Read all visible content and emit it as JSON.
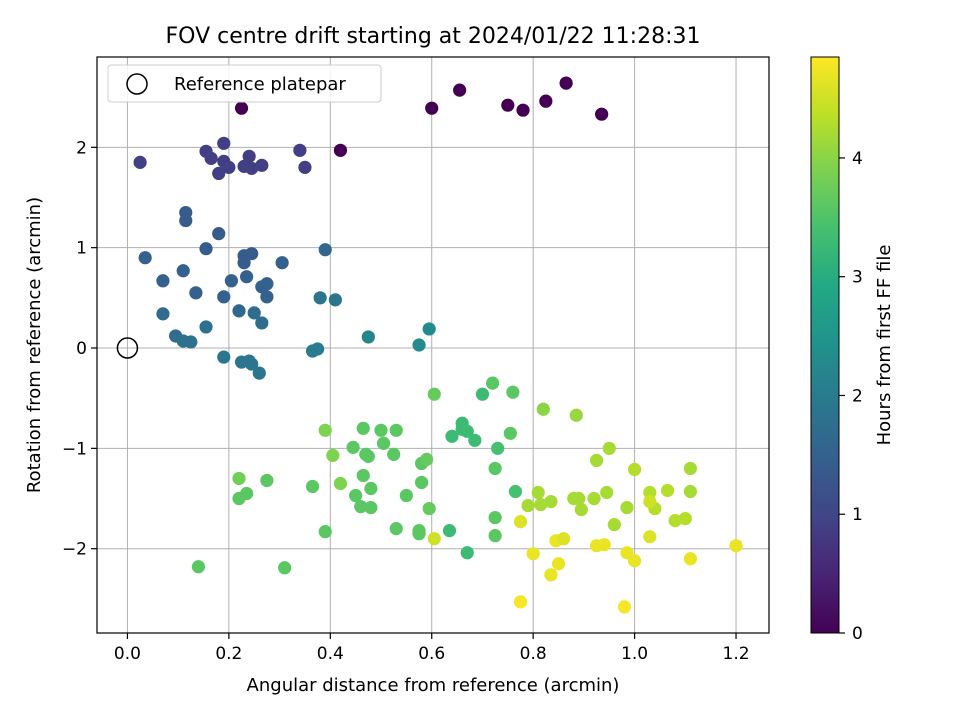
{
  "chart_data": {
    "type": "scatter",
    "title": "FOV centre drift starting at 2024/01/22 11:28:31",
    "xlabel": "Angular distance from reference (arcmin)",
    "ylabel": "Rotation from reference (arcmin)",
    "xlim": [
      -0.06,
      1.265
    ],
    "ylim": [
      -2.84,
      2.9
    ],
    "x_ticks": [
      0.0,
      0.2,
      0.4,
      0.6,
      0.8,
      1.0,
      1.2
    ],
    "x_tick_labels": [
      "0.0",
      "0.2",
      "0.4",
      "0.6",
      "0.8",
      "1.0",
      "1.2"
    ],
    "y_ticks": [
      -2,
      -1,
      0,
      1,
      2
    ],
    "y_tick_labels": [
      "−2",
      "−1",
      "0",
      "1",
      "2"
    ],
    "grid": true,
    "legend": {
      "position": "top-left",
      "entries": [
        {
          "label": "Reference platepar",
          "marker": "open-circle"
        }
      ]
    },
    "reference_point": {
      "x": 0.0,
      "y": 0.0
    },
    "colorbar": {
      "label": "Hours from first FF file",
      "colormap": "viridis",
      "range": [
        0,
        4.85
      ],
      "ticks": [
        0,
        1,
        2,
        3,
        4
      ],
      "tick_labels": [
        "0",
        "1",
        "2",
        "3",
        "4"
      ]
    },
    "points": [
      [
        0.225,
        2.39,
        0.0
      ],
      [
        0.42,
        1.97,
        0.0
      ],
      [
        0.6,
        2.39,
        0.0
      ],
      [
        0.655,
        2.57,
        0.0
      ],
      [
        0.75,
        2.42,
        0.0
      ],
      [
        0.78,
        2.37,
        0.0
      ],
      [
        0.825,
        2.46,
        0.0
      ],
      [
        0.865,
        2.64,
        0.0
      ],
      [
        0.935,
        2.33,
        0.0
      ],
      [
        0.025,
        1.85,
        0.9
      ],
      [
        0.155,
        1.96,
        0.9
      ],
      [
        0.165,
        1.89,
        0.9
      ],
      [
        0.19,
        2.04,
        0.9
      ],
      [
        0.19,
        1.86,
        0.9
      ],
      [
        0.18,
        1.74,
        0.9
      ],
      [
        0.2,
        1.8,
        0.9
      ],
      [
        0.23,
        1.81,
        0.9
      ],
      [
        0.24,
        1.91,
        0.9
      ],
      [
        0.245,
        1.79,
        0.9
      ],
      [
        0.265,
        1.82,
        0.9
      ],
      [
        0.34,
        1.97,
        0.9
      ],
      [
        0.35,
        1.8,
        0.9
      ],
      [
        0.115,
        1.35,
        1.4
      ],
      [
        0.115,
        1.27,
        1.4
      ],
      [
        0.18,
        1.14,
        1.4
      ],
      [
        0.155,
        0.99,
        1.4
      ],
      [
        0.23,
        0.92,
        1.4
      ],
      [
        0.245,
        0.94,
        1.4
      ],
      [
        0.23,
        0.85,
        1.4
      ],
      [
        0.035,
        0.9,
        1.5
      ],
      [
        0.11,
        0.77,
        1.5
      ],
      [
        0.07,
        0.67,
        1.5
      ],
      [
        0.135,
        0.55,
        1.5
      ],
      [
        0.205,
        0.67,
        1.5
      ],
      [
        0.235,
        0.71,
        1.5
      ],
      [
        0.19,
        0.51,
        1.5
      ],
      [
        0.265,
        0.61,
        1.5
      ],
      [
        0.275,
        0.64,
        1.5
      ],
      [
        0.275,
        0.51,
        1.5
      ],
      [
        0.305,
        0.85,
        1.5
      ],
      [
        0.39,
        0.98,
        1.6
      ],
      [
        0.22,
        0.37,
        1.6
      ],
      [
        0.25,
        0.35,
        1.7
      ],
      [
        0.265,
        0.25,
        1.7
      ],
      [
        0.07,
        0.34,
        1.7
      ],
      [
        0.095,
        0.12,
        1.7
      ],
      [
        0.11,
        0.07,
        1.8
      ],
      [
        0.125,
        0.06,
        1.8
      ],
      [
        0.155,
        0.21,
        1.8
      ],
      [
        0.38,
        0.5,
        1.9
      ],
      [
        0.41,
        0.48,
        1.9
      ],
      [
        0.19,
        -0.09,
        1.9
      ],
      [
        0.225,
        -0.14,
        1.9
      ],
      [
        0.24,
        -0.13,
        1.9
      ],
      [
        0.245,
        -0.16,
        1.9
      ],
      [
        0.26,
        -0.25,
        1.9
      ],
      [
        0.365,
        -0.03,
        2.0
      ],
      [
        0.375,
        -0.01,
        2.0
      ],
      [
        0.475,
        0.11,
        2.2
      ],
      [
        0.575,
        0.03,
        2.3
      ],
      [
        0.595,
        0.19,
        2.3
      ],
      [
        0.22,
        -1.5,
        3.6
      ],
      [
        0.235,
        -1.45,
        3.6
      ],
      [
        0.275,
        -1.32,
        3.6
      ],
      [
        0.365,
        -1.38,
        3.6
      ],
      [
        0.39,
        -1.83,
        3.6
      ],
      [
        0.14,
        -2.18,
        3.6
      ],
      [
        0.31,
        -2.19,
        3.6
      ],
      [
        0.22,
        -1.3,
        3.8
      ],
      [
        0.39,
        -0.82,
        3.9
      ],
      [
        0.405,
        -1.07,
        3.9
      ],
      [
        0.42,
        -1.35,
        3.9
      ],
      [
        0.445,
        -0.99,
        3.6
      ],
      [
        0.45,
        -1.47,
        3.6
      ],
      [
        0.46,
        -1.58,
        3.6
      ],
      [
        0.465,
        -1.27,
        3.6
      ],
      [
        0.465,
        -0.8,
        3.6
      ],
      [
        0.47,
        -1.06,
        3.6
      ],
      [
        0.475,
        -1.08,
        3.6
      ],
      [
        0.48,
        -1.4,
        3.6
      ],
      [
        0.48,
        -1.59,
        3.6
      ],
      [
        0.5,
        -0.82,
        3.6
      ],
      [
        0.505,
        -0.95,
        3.6
      ],
      [
        0.525,
        -1.06,
        3.6
      ],
      [
        0.53,
        -0.82,
        3.6
      ],
      [
        0.53,
        -1.8,
        3.6
      ],
      [
        0.55,
        -1.47,
        3.6
      ],
      [
        0.575,
        -1.85,
        3.6
      ],
      [
        0.575,
        -1.82,
        3.6
      ],
      [
        0.58,
        -1.34,
        3.6
      ],
      [
        0.58,
        -1.15,
        3.6
      ],
      [
        0.59,
        -1.11,
        3.7
      ],
      [
        0.595,
        -1.6,
        3.7
      ],
      [
        0.605,
        -0.46,
        3.7
      ],
      [
        0.635,
        -1.82,
        3.3
      ],
      [
        0.64,
        -0.88,
        3.3
      ],
      [
        0.66,
        -0.75,
        3.3
      ],
      [
        0.66,
        -0.81,
        3.3
      ],
      [
        0.67,
        -2.04,
        3.3
      ],
      [
        0.67,
        -0.83,
        3.3
      ],
      [
        0.685,
        -0.92,
        3.3
      ],
      [
        0.7,
        -0.46,
        3.3
      ],
      [
        0.72,
        -0.35,
        3.6
      ],
      [
        0.725,
        -1.2,
        3.6
      ],
      [
        0.725,
        -1.69,
        3.6
      ],
      [
        0.725,
        -1.87,
        3.6
      ],
      [
        0.73,
        -1.0,
        3.4
      ],
      [
        0.755,
        -0.85,
        3.6
      ],
      [
        0.76,
        -0.44,
        3.6
      ],
      [
        0.765,
        -1.43,
        3.4
      ],
      [
        0.79,
        -1.57,
        4.2
      ],
      [
        0.81,
        -1.44,
        4.2
      ],
      [
        0.815,
        -1.56,
        4.2
      ],
      [
        0.82,
        -0.61,
        4.0
      ],
      [
        0.835,
        -1.53,
        4.2
      ],
      [
        0.885,
        -0.67,
        4.1
      ],
      [
        0.88,
        -1.5,
        4.2
      ],
      [
        0.89,
        -1.5,
        4.2
      ],
      [
        0.895,
        -1.61,
        4.2
      ],
      [
        0.92,
        -1.5,
        4.2
      ],
      [
        0.925,
        -1.12,
        4.2
      ],
      [
        0.945,
        -1.44,
        4.2
      ],
      [
        0.95,
        -1.0,
        4.2
      ],
      [
        0.96,
        -1.76,
        4.2
      ],
      [
        0.985,
        -1.59,
        4.2
      ],
      [
        1.0,
        -1.21,
        4.3
      ],
      [
        1.03,
        -1.44,
        4.3
      ],
      [
        1.04,
        -1.6,
        4.3
      ],
      [
        1.065,
        -1.42,
        4.3
      ],
      [
        1.08,
        -1.72,
        4.3
      ],
      [
        1.1,
        -1.7,
        4.3
      ],
      [
        1.11,
        -1.2,
        4.2
      ],
      [
        1.11,
        -1.43,
        4.2
      ],
      [
        0.775,
        -1.73,
        4.6
      ],
      [
        0.775,
        -2.53,
        4.8
      ],
      [
        0.8,
        -2.05,
        4.7
      ],
      [
        0.835,
        -2.26,
        4.7
      ],
      [
        0.845,
        -1.92,
        4.7
      ],
      [
        0.85,
        -2.15,
        4.7
      ],
      [
        0.86,
        -1.9,
        4.6
      ],
      [
        0.925,
        -1.97,
        4.7
      ],
      [
        0.94,
        -1.96,
        4.7
      ],
      [
        0.98,
        -2.58,
        4.8
      ],
      [
        0.985,
        -2.04,
        4.7
      ],
      [
        1.0,
        -2.12,
        4.7
      ],
      [
        1.03,
        -1.88,
        4.6
      ],
      [
        1.03,
        -1.53,
        4.5
      ],
      [
        1.11,
        -2.1,
        4.7
      ],
      [
        1.2,
        -1.97,
        4.7
      ],
      [
        0.605,
        -1.9,
        4.5
      ]
    ]
  }
}
